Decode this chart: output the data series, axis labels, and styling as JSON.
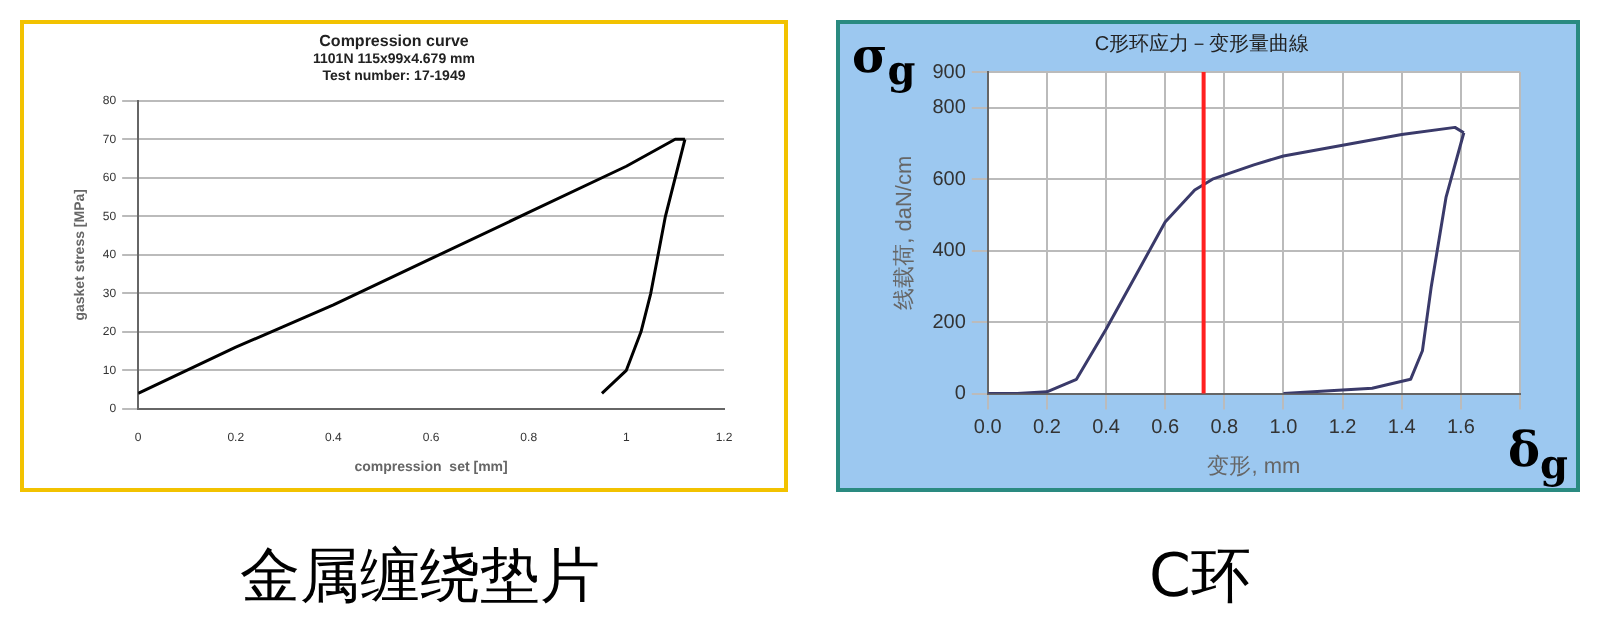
{
  "chart_data": [
    {
      "type": "line",
      "title": "Compression curve",
      "subtitle": "1101N 115x99x4.679 mm\nTest number: 17-1949",
      "xlabel": "compression  set [mm]",
      "ylabel": "gasket stress [MPa]",
      "xlim": [
        0,
        1.2
      ],
      "xticks": [
        0,
        0.2,
        0.4,
        0.6,
        0.8,
        1,
        1.2
      ],
      "ylim": [
        0,
        80
      ],
      "yticks": [
        0,
        10,
        20,
        30,
        40,
        50,
        60,
        70,
        80
      ],
      "grid": "y",
      "legend": false,
      "marker": "none",
      "line_style": "solid",
      "series": [
        {
          "color": "#000000",
          "x": [
            0,
            0.2,
            0.4,
            0.6,
            0.8,
            1.0,
            1.1,
            1.12
          ],
          "values": [
            4,
            16,
            27,
            39,
            51,
            63,
            70,
            70
          ]
        },
        {
          "color": "#000000",
          "x": [
            1.12,
            1.1,
            1.08,
            1.05,
            1.03,
            1.0,
            0.95
          ],
          "values": [
            70,
            60,
            50,
            30,
            20,
            10,
            4
          ]
        }
      ],
      "annotations": [
        "金属缠绕垫片"
      ]
    },
    {
      "type": "line",
      "title": "C形环应力－变形量曲線",
      "xlabel": "变形, mm",
      "ylabel": "线载荷, daN/cm",
      "xlim": [
        0,
        1.8
      ],
      "xticks": [
        {
          "value": 0,
          "label": "0.0"
        },
        0.2,
        0.4,
        0.6,
        0.8,
        {
          "value": 1,
          "label": "1.0"
        },
        1.2,
        1.4,
        1.6,
        {
          "value": 1.8,
          "label": null
        }
      ],
      "ylim": [
        0,
        900
      ],
      "yticks": [
        0,
        200,
        400,
        600,
        800,
        900
      ],
      "grid": true,
      "legend": false,
      "marker": "none",
      "line_style": "solid",
      "series": [
        {
          "color": "#3a3a6a",
          "x": [
            0,
            0.1,
            0.2,
            0.3,
            0.4,
            0.5,
            0.6,
            0.7,
            0.76,
            0.9,
            1.0,
            1.2,
            1.4,
            1.58,
            1.61
          ],
          "values": [
            0,
            0,
            5,
            40,
            180,
            330,
            480,
            570,
            600,
            640,
            665,
            695,
            725,
            745,
            730
          ]
        },
        {
          "color": "#3a3a6a",
          "x": [
            1.61,
            1.55,
            1.5,
            1.47,
            1.43,
            1.3,
            1.1,
            1.0
          ],
          "values": [
            730,
            550,
            300,
            120,
            40,
            15,
            5,
            0
          ]
        }
      ],
      "ref_lines": [
        {
          "axis": "x",
          "value": 0.73,
          "color": "#ff2020",
          "line_style": "solid"
        }
      ],
      "annotations": [
        "σ$_{g}$",
        "δ$_{g}$",
        "C环"
      ]
    }
  ]
}
